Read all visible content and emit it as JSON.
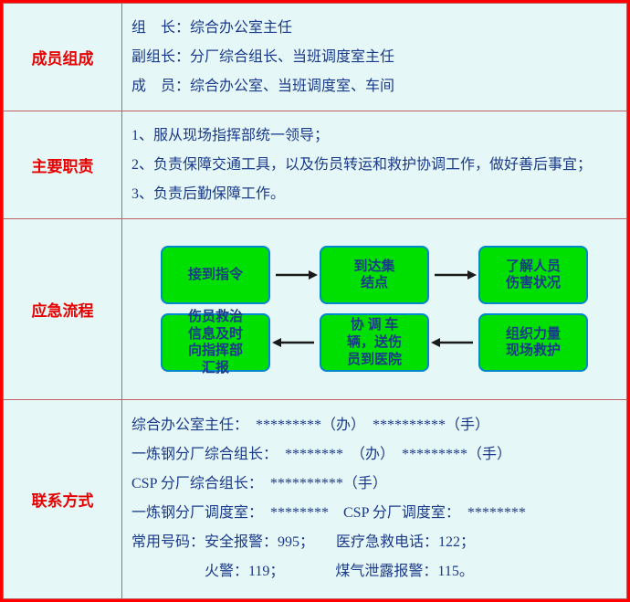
{
  "colors": {
    "outer_border": "#ff0000",
    "cell_border": "#c06060",
    "background": "#e6f7f7",
    "label_text": "#e60000",
    "body_text": "#1a3a8a",
    "node_fill": "#00e000",
    "node_border": "#0088cc",
    "arrow": "#1a1a1a"
  },
  "rows": {
    "members": {
      "label": "成员组成",
      "lines": [
        "组　长：综合办公室主任",
        "副组长：分厂综合组长、当班调度室主任",
        "成　员：综合办公室、当班调度室、车间"
      ]
    },
    "duties": {
      "label": "主要职责",
      "lines": [
        "1、服从现场指挥部统一领导；",
        "2、负责保障交通工具，以及伤员转运和救护协调工作，做好善后事宜；",
        "3、负责后勤保障工作。"
      ]
    },
    "flow": {
      "label": "应急流程",
      "nodes": {
        "n1": "接到指令",
        "n2": "到达集\n结点",
        "n3": "了解人员\n伤害状况",
        "n4": "组织力量\n现场救护",
        "n5": "协 调 车\n辆，送伤\n员到医院",
        "n6": "伤员救治\n信息及时\n向指挥部\n汇报"
      },
      "arrows": {
        "right": "→",
        "left": "←"
      },
      "node_style": {
        "width": 120,
        "height": 64,
        "border_radius": 8,
        "font_size": 15
      }
    },
    "contacts": {
      "label": "联系方式",
      "lines": [
        "综合办公室主任：　*********（办）　**********（手）",
        "一炼钢分厂综合组长：　********　（办）　*********（手）",
        "CSP 分厂综合组长：　**********（手）",
        "一炼钢分厂调度室：　********　CSP 分厂调度室：　********",
        "常用号码：安全报警：995；　　医疗急救电话：122；",
        "　　　　　火警：119；　　　　煤气泄露报警：115。"
      ]
    }
  }
}
